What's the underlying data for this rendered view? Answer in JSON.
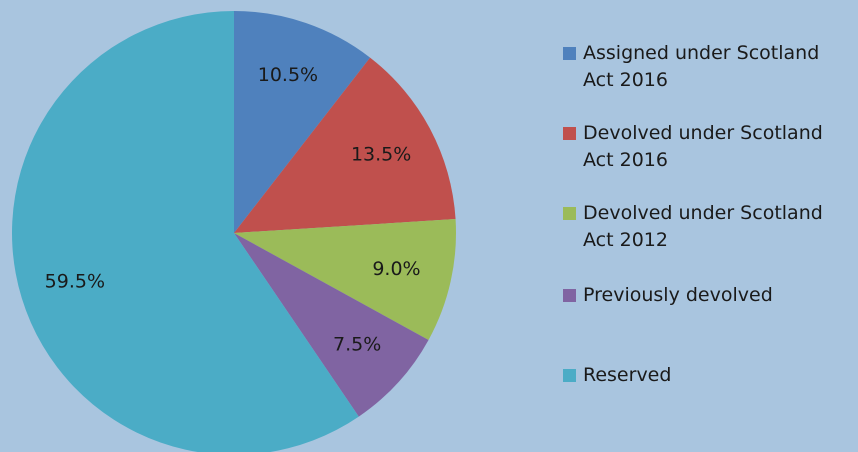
{
  "chart_data": {
    "type": "pie",
    "categories": [
      "Assigned under Scotland Act 2016",
      "Devolved under Scotland Act 2016",
      "Devolved under Scotland Act 2012",
      "Previously devolved",
      "Reserved"
    ],
    "values": [
      10.5,
      13.5,
      9.0,
      7.5,
      59.5
    ],
    "value_labels": [
      "10.5%",
      "13.5%",
      "9.0%",
      "7.5%",
      "59.5%"
    ],
    "colors": [
      "#4f81bd",
      "#c0504d",
      "#9bbb59",
      "#8064a2",
      "#4bacc6"
    ],
    "legend": "right"
  }
}
